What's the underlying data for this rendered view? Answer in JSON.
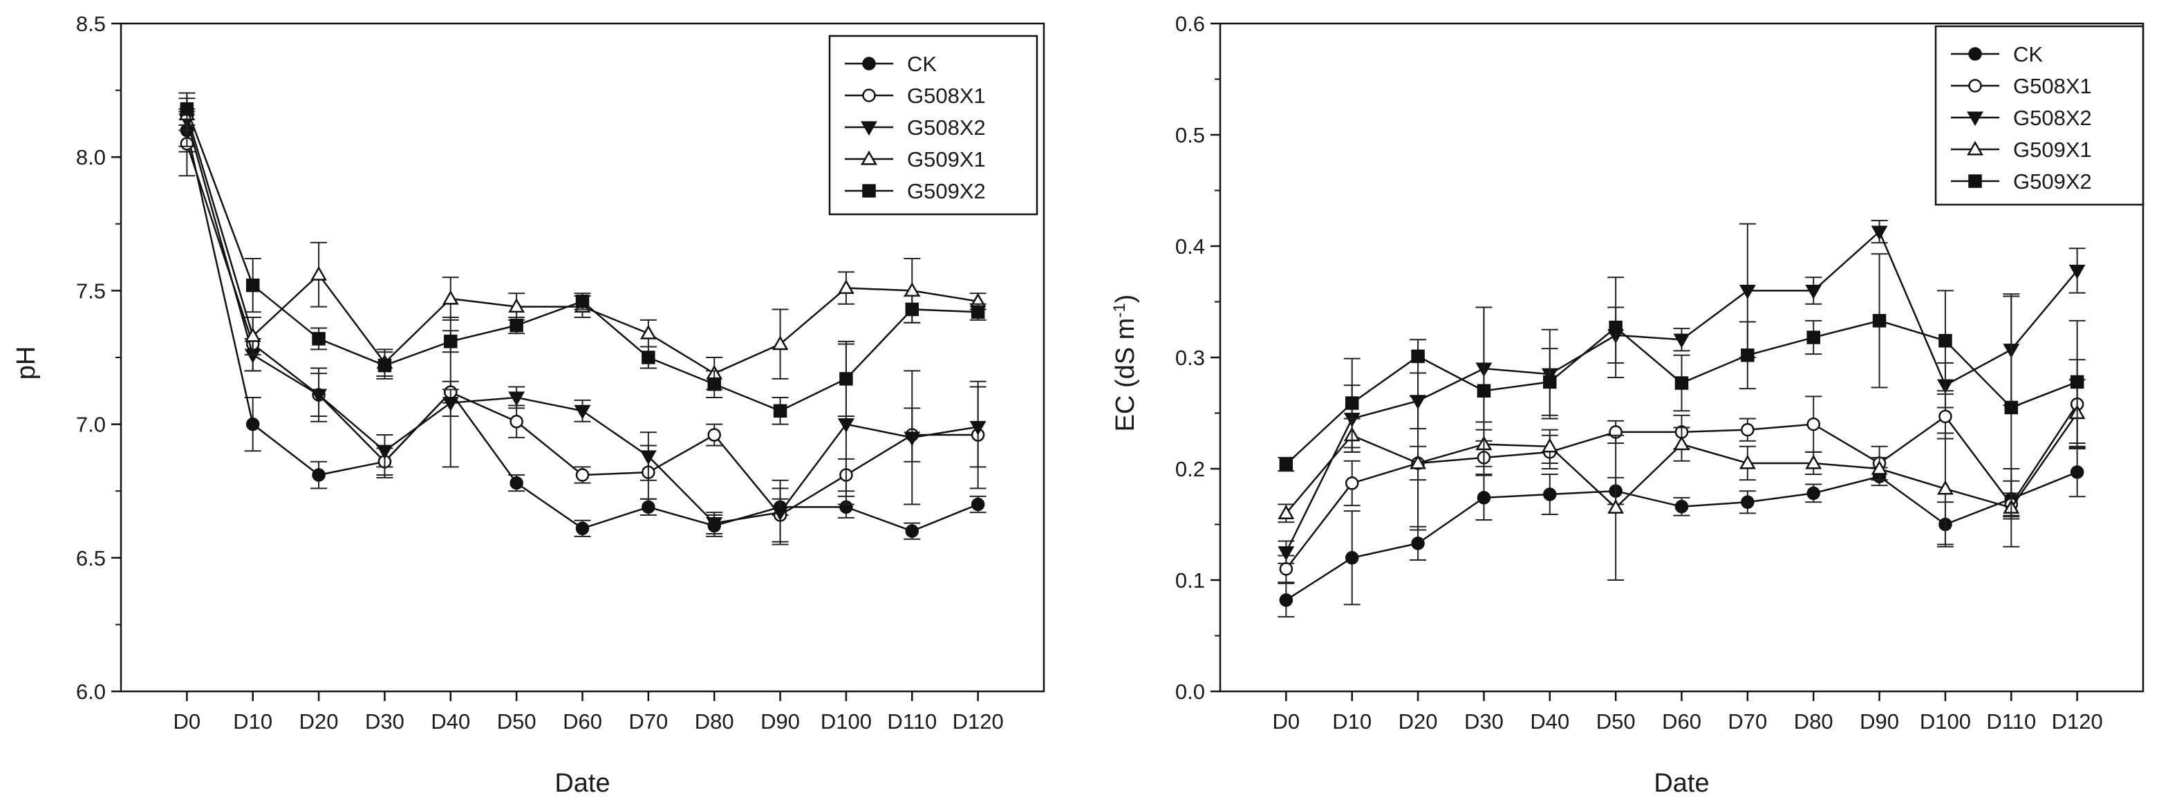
{
  "chart_data": [
    {
      "type": "line",
      "title": "",
      "xlabel": "Date",
      "ylabel": "pH",
      "ylim": [
        6.0,
        8.5
      ],
      "yticks": [
        "6.0",
        "6.5",
        "7.0",
        "7.5",
        "8.0",
        "8.5"
      ],
      "categories": [
        "D0",
        "D10",
        "D20",
        "D30",
        "D40",
        "D50",
        "D60",
        "D70",
        "D80",
        "D90",
        "D100",
        "D110",
        "D120"
      ],
      "legend_position": "top-right",
      "grid": false,
      "series": [
        {
          "name": "CK",
          "marker": "circle-filled",
          "values": [
            8.1,
            7.0,
            6.81,
            6.86,
            7.12,
            6.78,
            6.61,
            6.69,
            6.62,
            6.69,
            6.69,
            6.6,
            6.7
          ],
          "errors": [
            0.08,
            0.1,
            0.05,
            0.05,
            0.04,
            0.03,
            0.03,
            0.03,
            0.04,
            0.03,
            0.04,
            0.03,
            0.03
          ]
        },
        {
          "name": "G508X1",
          "marker": "circle-open",
          "values": [
            8.05,
            7.3,
            7.11,
            6.86,
            7.12,
            7.01,
            6.81,
            6.82,
            6.96,
            6.66,
            6.81,
            6.96,
            6.96
          ],
          "errors": [
            0.12,
            0.1,
            0.08,
            0.06,
            0.28,
            0.06,
            0.03,
            0.1,
            0.04,
            0.1,
            0.06,
            0.1,
            0.2
          ]
        },
        {
          "name": "G508X2",
          "marker": "triangle-down-filled",
          "values": [
            8.14,
            7.26,
            7.11,
            6.9,
            7.08,
            7.1,
            7.05,
            6.88,
            6.63,
            6.67,
            7.0,
            6.95,
            6.99
          ],
          "errors": [
            0.1,
            0.06,
            0.1,
            0.06,
            0.05,
            0.04,
            0.04,
            0.09,
            0.04,
            0.12,
            0.3,
            0.25,
            0.15
          ]
        },
        {
          "name": "G509X1",
          "marker": "triangle-up-open",
          "values": [
            8.16,
            7.33,
            7.56,
            7.23,
            7.47,
            7.44,
            7.44,
            7.34,
            7.19,
            7.3,
            7.51,
            7.5,
            7.46
          ],
          "errors": [
            0.06,
            0.07,
            0.12,
            0.05,
            0.08,
            0.05,
            0.04,
            0.05,
            0.06,
            0.13,
            0.06,
            0.12,
            0.03
          ]
        },
        {
          "name": "G509X2",
          "marker": "square-filled",
          "values": [
            8.18,
            7.52,
            7.32,
            7.22,
            7.31,
            7.37,
            7.46,
            7.25,
            7.15,
            7.05,
            7.17,
            7.43,
            7.42
          ],
          "errors": [
            0.06,
            0.1,
            0.04,
            0.05,
            0.04,
            0.03,
            0.03,
            0.04,
            0.05,
            0.05,
            0.14,
            0.05,
            0.03
          ]
        }
      ]
    },
    {
      "type": "line",
      "title": "",
      "xlabel": "Date",
      "ylabel": "EC (dS m",
      "ylabel_sup": "-1",
      "ylabel_end": ")",
      "ylim": [
        0.0,
        0.6
      ],
      "yticks": [
        "0.0",
        "0.1",
        "0.2",
        "0.3",
        "0.4",
        "0.5",
        "0.6"
      ],
      "categories": [
        "D0",
        "D10",
        "D20",
        "D30",
        "D40",
        "D50",
        "D60",
        "D70",
        "D80",
        "D90",
        "D100",
        "D110",
        "D120"
      ],
      "legend_position": "top-right",
      "grid": false,
      "series": [
        {
          "name": "CK",
          "marker": "circle-filled",
          "values": [
            0.082,
            0.12,
            0.133,
            0.174,
            0.177,
            0.18,
            0.166,
            0.17,
            0.178,
            0.193,
            0.15,
            0.173,
            0.197
          ],
          "errors": [
            0.015,
            0.042,
            0.015,
            0.02,
            0.018,
            0.012,
            0.008,
            0.01,
            0.008,
            0.008,
            0.02,
            0.016,
            0.022
          ]
        },
        {
          "name": "G508X1",
          "marker": "circle-open",
          "values": [
            0.11,
            0.187,
            0.205,
            0.21,
            0.215,
            0.233,
            0.233,
            0.235,
            0.24,
            0.205,
            0.247,
            0.168,
            0.258
          ],
          "errors": [
            0.012,
            0.02,
            0.06,
            0.015,
            0.015,
            0.01,
            0.015,
            0.01,
            0.025,
            0.015,
            0.02,
            0.01,
            0.04
          ]
        },
        {
          "name": "G508X2",
          "marker": "triangle-down-filled",
          "values": [
            0.125,
            0.245,
            0.261,
            0.29,
            0.285,
            0.32,
            0.316,
            0.36,
            0.36,
            0.413,
            0.275,
            0.307,
            0.378
          ],
          "errors": [
            0.01,
            0.03,
            0.025,
            0.055,
            0.04,
            0.025,
            0.01,
            0.06,
            0.012,
            0.01,
            0.02,
            0.05,
            0.02
          ]
        },
        {
          "name": "G509X1",
          "marker": "triangle-up-open",
          "values": [
            0.16,
            0.23,
            0.205,
            0.222,
            0.22,
            0.165,
            0.222,
            0.205,
            0.205,
            0.2,
            0.182,
            0.165,
            0.25
          ],
          "errors": [
            0.008,
            0.015,
            0.015,
            0.02,
            0.015,
            0.065,
            0.015,
            0.015,
            0.01,
            0.01,
            0.05,
            0.035,
            0.03
          ]
        },
        {
          "name": "G509X2",
          "marker": "square-filled",
          "values": [
            0.204,
            0.259,
            0.301,
            0.27,
            0.278,
            0.327,
            0.277,
            0.302,
            0.318,
            0.333,
            0.315,
            0.255,
            0.278
          ],
          "errors": [
            0.006,
            0.04,
            0.015,
            0.075,
            0.03,
            0.045,
            0.025,
            0.03,
            0.015,
            0.06,
            0.045,
            0.1,
            0.055
          ]
        }
      ]
    }
  ]
}
